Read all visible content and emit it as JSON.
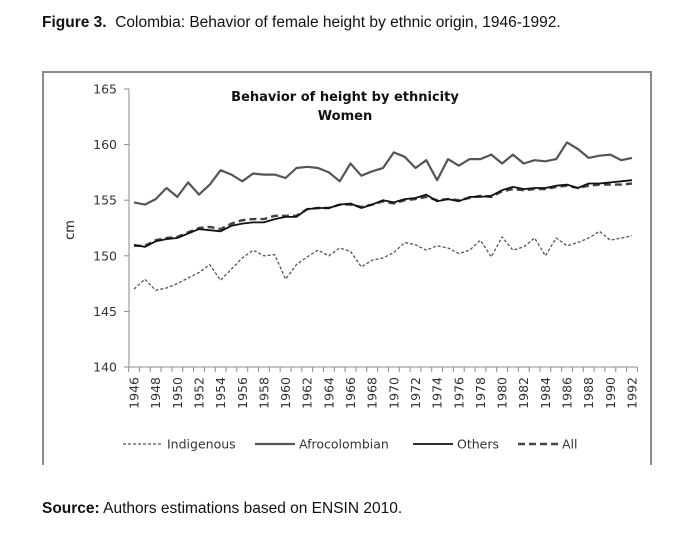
{
  "figure": {
    "label": "Figure 3.",
    "caption": "Colombia: Behavior of female height by ethnic origin, 1946-1992."
  },
  "source": {
    "label": "Source:",
    "text": "Authors estimations based on ENSIN 2010."
  },
  "chart_data": {
    "type": "line",
    "title": "Behavior of height by ethnicity",
    "subtitle": "Women",
    "xlabel": "",
    "ylabel": "cm",
    "ylim": [
      140,
      165
    ],
    "yticks": [
      140,
      145,
      150,
      155,
      160,
      165
    ],
    "xlim": [
      1946,
      1992
    ],
    "xtick_labels": [
      "1946",
      "1948",
      "1950",
      "1952",
      "1954",
      "1956",
      "1958",
      "1960",
      "1962",
      "1964",
      "1966",
      "1968",
      "1970",
      "1972",
      "1974",
      "1976",
      "1978",
      "1980",
      "1982",
      "1984",
      "1986",
      "1988",
      "1990",
      "1992"
    ],
    "grid": false,
    "legend_position": "bottom",
    "x": [
      1946,
      1947,
      1948,
      1949,
      1950,
      1951,
      1952,
      1953,
      1954,
      1955,
      1956,
      1957,
      1958,
      1959,
      1960,
      1961,
      1962,
      1963,
      1964,
      1965,
      1966,
      1967,
      1968,
      1969,
      1970,
      1971,
      1972,
      1973,
      1974,
      1975,
      1976,
      1977,
      1978,
      1979,
      1980,
      1981,
      1982,
      1983,
      1984,
      1985,
      1986,
      1987,
      1988,
      1989,
      1990,
      1991,
      1992
    ],
    "series": [
      {
        "name": "Indigenous",
        "style": "dotted",
        "color": "#555555",
        "values": [
          147.0,
          147.9,
          146.9,
          147.1,
          147.5,
          148.0,
          148.5,
          149.2,
          147.8,
          148.8,
          149.8,
          150.5,
          150.0,
          150.1,
          147.9,
          149.2,
          149.9,
          150.5,
          150.0,
          150.7,
          150.4,
          149.0,
          149.6,
          149.8,
          150.3,
          151.2,
          151.0,
          150.5,
          150.9,
          150.7,
          150.2,
          150.5,
          151.4,
          149.9,
          151.7,
          150.5,
          150.8,
          151.6,
          150.0,
          151.6,
          150.9,
          151.2,
          151.6,
          152.2,
          151.4,
          151.6,
          151.8
        ]
      },
      {
        "name": "Afrocolombian",
        "style": "solid",
        "color": "#555555",
        "values": [
          154.8,
          154.6,
          155.1,
          156.1,
          155.3,
          156.6,
          155.5,
          156.4,
          157.7,
          157.3,
          156.7,
          157.4,
          157.3,
          157.3,
          157.0,
          157.9,
          158.0,
          157.9,
          157.5,
          156.7,
          158.3,
          157.2,
          157.6,
          157.9,
          159.3,
          158.9,
          157.9,
          158.6,
          156.8,
          158.7,
          158.1,
          158.7,
          158.7,
          159.1,
          158.3,
          159.1,
          158.3,
          158.6,
          158.5,
          158.7,
          160.2,
          159.6,
          158.8,
          159.0,
          159.1,
          158.6,
          158.8
        ]
      },
      {
        "name": "Others",
        "style": "solid",
        "color": "#111111",
        "values": [
          151.0,
          150.8,
          151.3,
          151.5,
          151.6,
          152.0,
          152.4,
          152.3,
          152.2,
          152.7,
          152.9,
          153.0,
          153.0,
          153.3,
          153.5,
          153.5,
          154.2,
          154.3,
          154.3,
          154.6,
          154.7,
          154.3,
          154.6,
          155.0,
          154.8,
          155.1,
          155.2,
          155.5,
          154.9,
          155.1,
          154.9,
          155.3,
          155.3,
          155.4,
          155.9,
          156.2,
          156.0,
          156.1,
          156.1,
          156.3,
          156.4,
          156.1,
          156.5,
          156.5,
          156.6,
          156.7,
          156.8
        ]
      },
      {
        "name": "All",
        "style": "dashed",
        "color": "#444444",
        "values": [
          150.9,
          150.9,
          151.4,
          151.6,
          151.7,
          152.1,
          152.5,
          152.6,
          152.4,
          152.9,
          153.2,
          153.3,
          153.3,
          153.6,
          153.6,
          153.6,
          154.2,
          154.3,
          154.3,
          154.6,
          154.6,
          154.4,
          154.6,
          154.9,
          154.7,
          155.0,
          155.1,
          155.3,
          155.0,
          155.1,
          155.0,
          155.2,
          155.4,
          155.3,
          155.8,
          156.0,
          155.9,
          156.0,
          156.0,
          156.2,
          156.3,
          156.1,
          156.3,
          156.4,
          156.4,
          156.4,
          156.5
        ]
      }
    ]
  }
}
